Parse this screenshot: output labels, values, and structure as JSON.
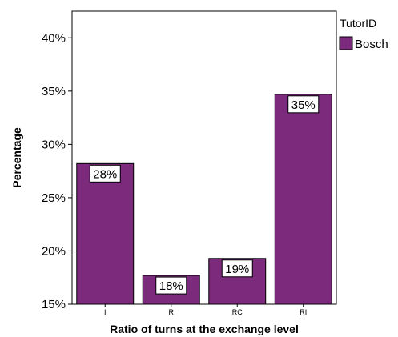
{
  "chart_data": {
    "type": "bar",
    "categories": [
      "I",
      "R",
      "RC",
      "RI"
    ],
    "series": [
      {
        "name": "Bosch",
        "values": [
          28.2,
          17.7,
          19.3,
          34.7
        ],
        "labels": [
          "28%",
          "18%",
          "19%",
          "35%"
        ],
        "color": "#7b2a7c"
      }
    ],
    "xlabel": "Ratio of turns at the exchange level",
    "ylabel": "Percentage",
    "ylim": [
      15,
      42.5
    ],
    "yticks": [
      15,
      20,
      25,
      30,
      35,
      40
    ],
    "ytick_labels": [
      "15%",
      "20%",
      "25%",
      "30%",
      "35%",
      "40%"
    ],
    "grid": false,
    "legend": {
      "title": "TutorID",
      "placement": "top-right"
    }
  }
}
